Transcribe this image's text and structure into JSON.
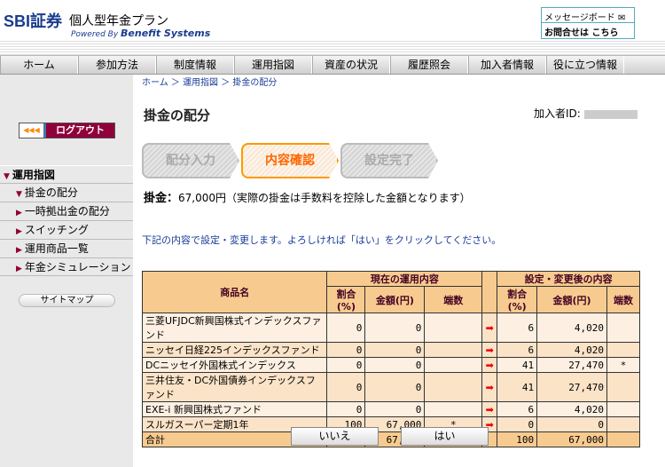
{
  "header": {
    "brand": "SBI証券",
    "plan": "個人型年金プラン",
    "powered_prefix": "Powered By",
    "powered_name": "Benefit Systems",
    "message_board": "メッセージボード",
    "contact": "お問合せは こちら"
  },
  "nav": [
    "ホーム",
    "参加方法",
    "制度情報",
    "運用指図",
    "資産の状況",
    "履歴照会",
    "加入者情報",
    "役に立つ情報"
  ],
  "sidebar": {
    "logout": "ログアウト",
    "section": "運用指図",
    "items": [
      "掛金の配分",
      "一時拠出金の配分",
      "スイッチング",
      "運用商品一覧",
      "年金シミュレーション"
    ],
    "sitemap": "サイトマップ"
  },
  "breadcrumb": [
    "ホーム",
    "運用指図",
    "掛金の配分"
  ],
  "page": {
    "title": "掛金の配分",
    "member_label": "加入者ID:",
    "steps": [
      "配分入力",
      "内容確認",
      "設定完了"
    ],
    "current_step": 1,
    "contribution_label": "掛金：",
    "contribution_value": "67,000円",
    "contribution_note": "（実際の掛金は手数料を控除した金額となります）",
    "instruction": "下記の内容で設定・変更します。よろしければ「はい」をクリックしてください。"
  },
  "table": {
    "col_name": "商品名",
    "group_current": "現在の運用内容",
    "group_after": "設定・変更後の内容",
    "col_ratio": "割合(%)",
    "col_amount": "金額(円)",
    "col_fraction": "端数",
    "rows": [
      {
        "name": "三菱UFJDC新興国株式インデックスファンド",
        "cur_ratio": "0",
        "cur_amount": "0",
        "cur_frac": "",
        "new_ratio": "6",
        "new_amount": "4,020",
        "new_frac": ""
      },
      {
        "name": "ニッセイ日経225インデックスファンド",
        "cur_ratio": "0",
        "cur_amount": "0",
        "cur_frac": "",
        "new_ratio": "6",
        "new_amount": "4,020",
        "new_frac": ""
      },
      {
        "name": "DCニッセイ外国株式インデックス",
        "cur_ratio": "0",
        "cur_amount": "0",
        "cur_frac": "",
        "new_ratio": "41",
        "new_amount": "27,470",
        "new_frac": "*"
      },
      {
        "name": "三井住友・DC外国債券インデックスファンド",
        "cur_ratio": "0",
        "cur_amount": "0",
        "cur_frac": "",
        "new_ratio": "41",
        "new_amount": "27,470",
        "new_frac": ""
      },
      {
        "name": "EXE-i 新興国株式ファンド",
        "cur_ratio": "0",
        "cur_amount": "0",
        "cur_frac": "",
        "new_ratio": "6",
        "new_amount": "4,020",
        "new_frac": ""
      },
      {
        "name": "スルガスーパー定期1年",
        "cur_ratio": "100",
        "cur_amount": "67,000",
        "cur_frac": "*",
        "new_ratio": "0",
        "new_amount": "0",
        "new_frac": ""
      }
    ],
    "total": {
      "name": "合計",
      "cur_ratio": "100",
      "cur_amount": "67,000",
      "new_ratio": "100",
      "new_amount": "67,000"
    }
  },
  "buttons": {
    "no": "いいえ",
    "yes": "はい"
  },
  "colors": {
    "accent": "#90003a",
    "header_cell": "#f7cb8f",
    "step_active": "#ff9900"
  }
}
